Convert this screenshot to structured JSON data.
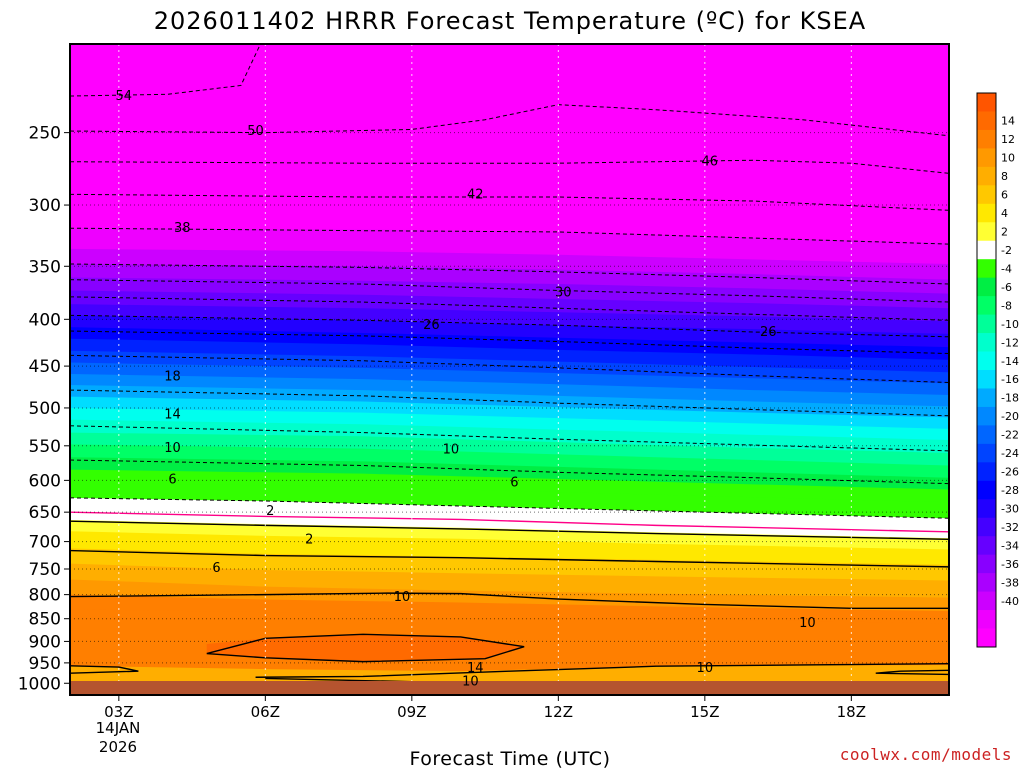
{
  "chart_data": {
    "type": "heatmap",
    "title": "2026011402 HRRR Forecast Temperature (ºC) for KSEA",
    "xlabel": "Forecast Time (UTC)",
    "ylabel": "",
    "x_ticks": [
      "03Z",
      "06Z",
      "09Z",
      "12Z",
      "15Z",
      "18Z"
    ],
    "x_hours": [
      3,
      6,
      9,
      12,
      15,
      18
    ],
    "x_range": [
      2,
      20
    ],
    "x_date_label": [
      "14JAN",
      "2026"
    ],
    "y_ticks": [
      250,
      300,
      350,
      400,
      450,
      500,
      550,
      600,
      650,
      700,
      750,
      800,
      850,
      900,
      950,
      1000
    ],
    "y_range_hpa": [
      1030,
      200
    ],
    "y_scale": "log-pressure",
    "colorbar": {
      "levels": [
        14,
        12,
        10,
        8,
        6,
        4,
        2,
        -2,
        -4,
        -6,
        -8,
        -10,
        -12,
        -14,
        -16,
        -18,
        -20,
        -22,
        -24,
        -26,
        -28,
        -30,
        -32,
        -34,
        -36,
        -38,
        -40
      ],
      "colors": [
        "#ff5500",
        "#ff6a00",
        "#ff7f00",
        "#ff9900",
        "#ffae00",
        "#ffc800",
        "#ffe800",
        "#ffff33",
        "#ffffff",
        "#33ff00",
        "#00ee44",
        "#00ff66",
        "#00ff99",
        "#00ffcc",
        "#00ffee",
        "#00ddff",
        "#00aaff",
        "#0088ff",
        "#0066ff",
        "#0044ff",
        "#0022ff",
        "#0000ff",
        "#2200ff",
        "#4400ff",
        "#6600ff",
        "#8800ff",
        "#aa00ff",
        "#cc00ff",
        "#ee00ff",
        "#ff00ff"
      ]
    },
    "isotherm_labels": [
      {
        "value": "54",
        "hour": 3.1,
        "hpa": 228
      },
      {
        "value": "50",
        "hour": 5.8,
        "hpa": 249
      },
      {
        "value": "46",
        "hour": 15.1,
        "hpa": 269
      },
      {
        "value": "42",
        "hour": 10.3,
        "hpa": 292
      },
      {
        "value": "38",
        "hour": 4.3,
        "hpa": 318
      },
      {
        "value": "30",
        "hour": 12.1,
        "hpa": 374
      },
      {
        "value": "26",
        "hour": 9.4,
        "hpa": 406
      },
      {
        "value": "26",
        "hour": 16.3,
        "hpa": 413
      },
      {
        "value": "18",
        "hour": 4.1,
        "hpa": 462
      },
      {
        "value": "14",
        "hour": 4.1,
        "hpa": 508
      },
      {
        "value": "10",
        "hour": 4.1,
        "hpa": 553
      },
      {
        "value": "10",
        "hour": 9.8,
        "hpa": 555
      },
      {
        "value": "6",
        "hour": 4.1,
        "hpa": 599
      },
      {
        "value": "6",
        "hour": 11.1,
        "hpa": 603
      },
      {
        "value": "2",
        "hour": 6.1,
        "hpa": 648
      },
      {
        "value": "2",
        "hour": 6.9,
        "hpa": 696
      },
      {
        "value": "6",
        "hour": 5.0,
        "hpa": 748
      },
      {
        "value": "10",
        "hour": 8.8,
        "hpa": 805
      },
      {
        "value": "10",
        "hour": 17.1,
        "hpa": 859
      },
      {
        "value": "10",
        "hour": 15.0,
        "hpa": 962
      },
      {
        "value": "14",
        "hour": 10.3,
        "hpa": 962
      },
      {
        "value": "10",
        "hour": 10.2,
        "hpa": 996
      }
    ]
  },
  "credit": "coolwx.com/models",
  "colors": {
    "credit": "#cc2222",
    "ground": "#b5542f",
    "frame": "#000000",
    "isotherm": "#000000",
    "freezing_line": "#ff0088"
  }
}
